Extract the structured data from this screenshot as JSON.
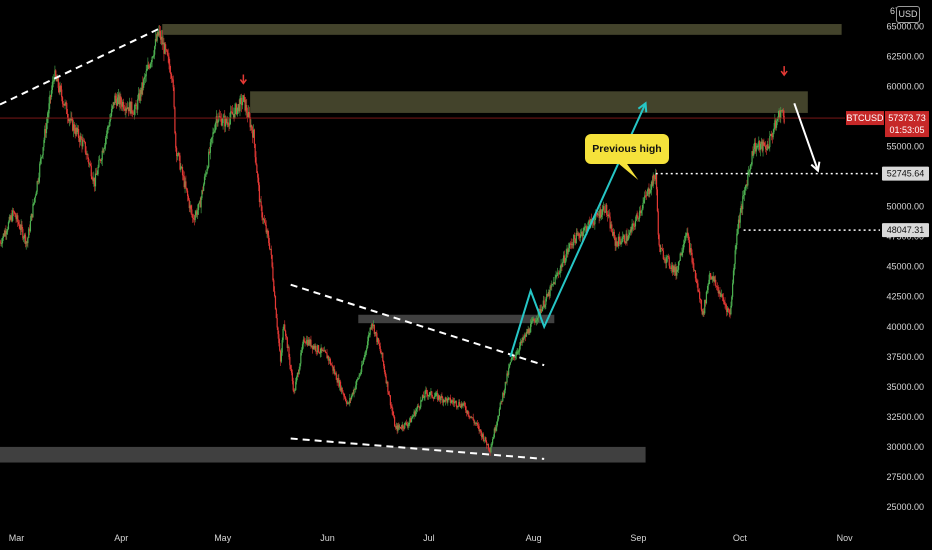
{
  "ui": {
    "currency_button": "USD",
    "top_tick_partial": "67",
    "callout": "Previous high"
  },
  "colors": {
    "background": "#000000",
    "up_candle": "#4caf50",
    "down_candle": "#e53935",
    "zone_fill": "#4a4a30",
    "grey_zone": "#555555",
    "arrow_teal": "#26c6c6",
    "arrow_white": "#ffffff",
    "marker_red": "#e53935",
    "price_tag": "#c62828"
  },
  "chart_data": {
    "type": "candlestick",
    "symbol": "BTCUSD",
    "x_axis": {
      "labels": [
        "Mar",
        "Apr",
        "May",
        "Jun",
        "Jul",
        "Aug",
        "Sep",
        "Oct",
        "Nov"
      ],
      "range": [
        "2021-02-25",
        "2021-11-02"
      ]
    },
    "y_axis": {
      "min": 23500,
      "max": 67200,
      "ticks": [
        25000,
        27500,
        30000,
        32500,
        35000,
        37500,
        40000,
        42500,
        45000,
        47500,
        50000,
        52500,
        55000,
        57500,
        60000,
        62500,
        65000
      ],
      "tick_labels": [
        "25000.00",
        "27500.00",
        "30000.00",
        "32500.00",
        "35000.00",
        "37500.00",
        "40000.00",
        "42500.00",
        "45000.00",
        "47500.00",
        "50000.00",
        "52500.00",
        "55000.00",
        "57500.00",
        "60000.00",
        "62500.00",
        "65000.00"
      ],
      "position": "right"
    },
    "grid": false,
    "price_path": [
      [
        "2021-02-25",
        47000
      ],
      [
        "2021-03-01",
        49500
      ],
      [
        "2021-03-05",
        47000
      ],
      [
        "2021-03-08",
        52000
      ],
      [
        "2021-03-13",
        61000
      ],
      [
        "2021-03-18",
        57000
      ],
      [
        "2021-03-22",
        55000
      ],
      [
        "2021-03-25",
        52000
      ],
      [
        "2021-03-31",
        59000
      ],
      [
        "2021-04-06",
        58000
      ],
      [
        "2021-04-13",
        64500
      ],
      [
        "2021-04-17",
        61000
      ],
      [
        "2021-04-18",
        55000
      ],
      [
        "2021-04-23",
        49000
      ],
      [
        "2021-04-25",
        50000
      ],
      [
        "2021-04-30",
        57500
      ],
      [
        "2021-05-03",
        57000
      ],
      [
        "2021-05-08",
        58900
      ],
      [
        "2021-05-11",
        56000
      ],
      [
        "2021-05-13",
        50000
      ],
      [
        "2021-05-16",
        46500
      ],
      [
        "2021-05-19",
        37000
      ],
      [
        "2021-05-20",
        40500
      ],
      [
        "2021-05-23",
        34500
      ],
      [
        "2021-05-26",
        39000
      ],
      [
        "2021-06-02",
        37500
      ],
      [
        "2021-06-08",
        33500
      ],
      [
        "2021-06-12",
        36500
      ],
      [
        "2021-06-15",
        40500
      ],
      [
        "2021-06-18",
        37500
      ],
      [
        "2021-06-22",
        31500
      ],
      [
        "2021-06-26",
        32000
      ],
      [
        "2021-07-01",
        34500
      ],
      [
        "2021-07-06",
        34000
      ],
      [
        "2021-07-12",
        33500
      ],
      [
        "2021-07-16",
        31800
      ],
      [
        "2021-07-20",
        29800
      ],
      [
        "2021-07-26",
        37000
      ],
      [
        "2021-08-01",
        40000
      ],
      [
        "2021-08-06",
        42500
      ],
      [
        "2021-08-13",
        47000
      ],
      [
        "2021-08-20",
        49000
      ],
      [
        "2021-08-23",
        50000
      ],
      [
        "2021-08-26",
        47000
      ],
      [
        "2021-08-30",
        47500
      ],
      [
        "2021-09-07",
        52700
      ],
      [
        "2021-09-08",
        46500
      ],
      [
        "2021-09-13",
        44500
      ],
      [
        "2021-09-16",
        48000
      ],
      [
        "2021-09-21",
        41000
      ],
      [
        "2021-09-23",
        44500
      ],
      [
        "2021-09-29",
        41000
      ],
      [
        "2021-10-01",
        48000
      ],
      [
        "2021-10-06",
        55000
      ],
      [
        "2021-10-10",
        55000
      ],
      [
        "2021-10-14",
        58000
      ],
      [
        "2021-10-15",
        57373
      ]
    ],
    "zones": [
      {
        "color": "olive",
        "x0": "2021-04-14",
        "x1": "2021-11-01",
        "y0": 64300,
        "y1": 65200
      },
      {
        "color": "olive",
        "x0": "2021-05-10",
        "x1": "2021-10-22",
        "y0": 57800,
        "y1": 59600
      },
      {
        "color": "grey",
        "x0": "2021-06-11",
        "x1": "2021-08-08",
        "y0": 40300,
        "y1": 41000
      },
      {
        "color": "grey",
        "x0": "2021-02-25",
        "x1": "2021-09-04",
        "y0": 28700,
        "y1": 30000
      }
    ],
    "trendlines": [
      {
        "style": "dashed",
        "points": [
          [
            "2021-02-25",
            58500
          ],
          [
            "2021-04-13",
            64800
          ]
        ]
      },
      {
        "style": "dashed",
        "points": [
          [
            "2021-05-22",
            43500
          ],
          [
            "2021-08-05",
            36800
          ]
        ]
      },
      {
        "style": "dashed",
        "points": [
          [
            "2021-05-22",
            30700
          ],
          [
            "2021-08-05",
            29000
          ]
        ]
      }
    ],
    "arrows": [
      {
        "color": "teal",
        "points": [
          [
            "2021-07-26",
            37500
          ],
          [
            "2021-08-01",
            43000
          ],
          [
            "2021-08-05",
            40000
          ],
          [
            "2021-09-04",
            58600
          ]
        ]
      },
      {
        "color": "white",
        "points": [
          [
            "2021-10-18",
            58600
          ],
          [
            "2021-10-25",
            53000
          ]
        ]
      }
    ],
    "markers": [
      {
        "type": "down-arrow",
        "x": "2021-05-08",
        "y": 60500
      },
      {
        "type": "down-arrow",
        "x": "2021-10-15",
        "y": 61200
      }
    ],
    "horizontal_levels": [
      {
        "value": 52745.64,
        "label": "52745.64",
        "style": "dotted",
        "from": "2021-09-07"
      },
      {
        "value": 48047.31,
        "label": "48047.31",
        "style": "dotted",
        "from": "2021-10-03"
      }
    ],
    "current_price": {
      "symbol_label": "BTCUSD",
      "value": 57373.73,
      "label": "57373.73",
      "countdown": "01:53:05"
    }
  }
}
